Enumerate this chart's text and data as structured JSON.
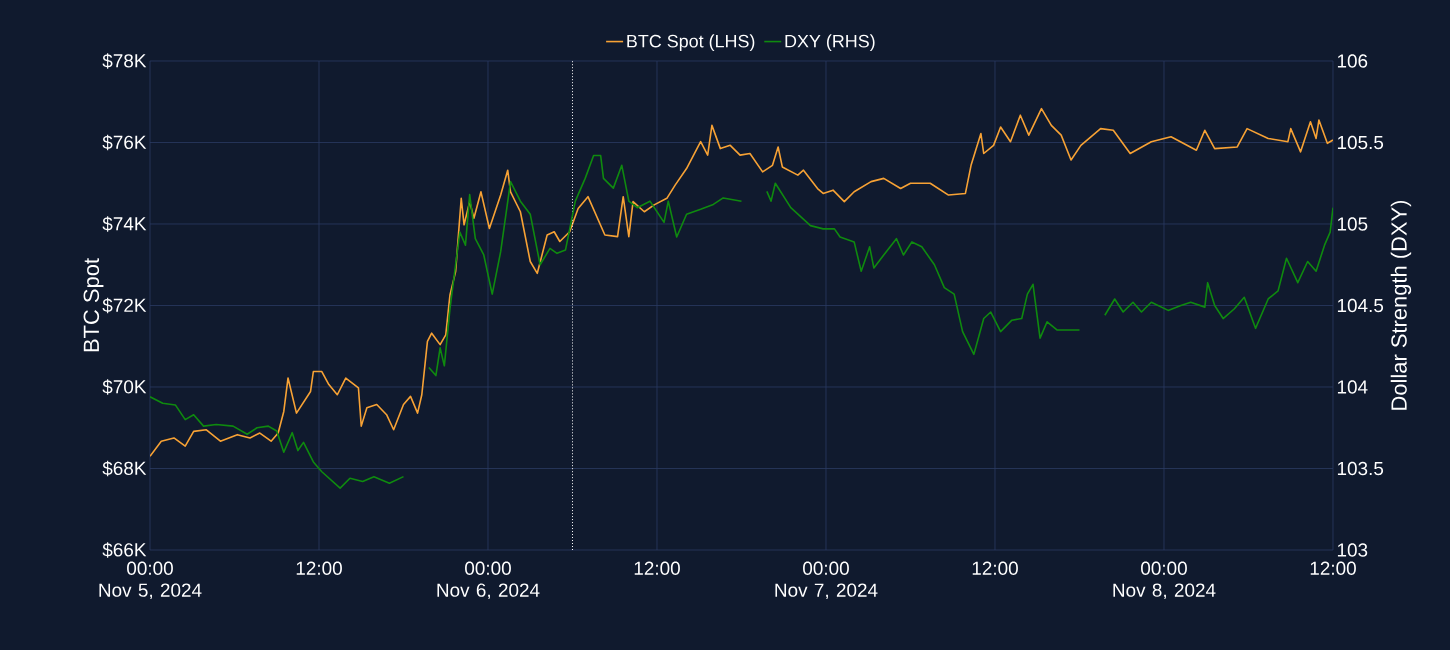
{
  "chart_data": {
    "type": "line",
    "xlim": [
      "2024-11-05T00:00",
      "2024-11-08T12:00"
    ],
    "xticks": [
      {
        "value": "2024-11-05T00:00",
        "label": "00:00\nNov 5, 2024"
      },
      {
        "value": "2024-11-05T12:00",
        "label": "12:00"
      },
      {
        "value": "2024-11-06T00:00",
        "label": "00:00\nNov 6, 2024"
      },
      {
        "value": "2024-11-06T12:00",
        "label": "12:00"
      },
      {
        "value": "2024-11-07T00:00",
        "label": "00:00\nNov 7, 2024"
      },
      {
        "value": "2024-11-07T12:00",
        "label": "12:00"
      },
      {
        "value": "2024-11-08T00:00",
        "label": "00:00\nNov 8, 2024"
      },
      {
        "value": "2024-11-08T12:00",
        "label": "12:00"
      }
    ],
    "ylim": [
      66,
      78
    ],
    "yticks": [
      {
        "value": 66,
        "label": "$66K"
      },
      {
        "value": 68,
        "label": "$68K"
      },
      {
        "value": 70,
        "label": "$70K"
      },
      {
        "value": 72,
        "label": "$72K"
      },
      {
        "value": 74,
        "label": "$74K"
      },
      {
        "value": 76,
        "label": "$76K"
      },
      {
        "value": 78,
        "label": "$78K"
      }
    ],
    "y2lim": [
      103,
      106
    ],
    "y2ticks": [
      103,
      103.5,
      104,
      104.5,
      105,
      105.5,
      106
    ],
    "ylabel": "BTC Spot",
    "y2label": "Dollar Strength (DXY)",
    "grid": true,
    "legend": "top",
    "ref_lines": [
      {
        "axis": "x",
        "value": "2024-11-06T06:00",
        "color": "#ffffff",
        "line_style": "dotted"
      }
    ],
    "series": [
      {
        "name": "BTC Spot (LHS)",
        "color": "#f7a235",
        "x": [
          "2024-11-05T00:00",
          "2024-11-05T00:48",
          "2024-11-05T01:42",
          "2024-11-05T02:30",
          "2024-11-05T03:06",
          "2024-11-05T04:00",
          "2024-11-05T05:00",
          "2024-11-05T06:12",
          "2024-11-05T07:06",
          "2024-11-05T07:48",
          "2024-11-05T08:36",
          "2024-11-05T09:06",
          "2024-11-05T09:30",
          "2024-11-05T09:48",
          "2024-11-05T10:24",
          "2024-11-05T11:24",
          "2024-11-05T11:36",
          "2024-11-05T12:12",
          "2024-11-05T12:42",
          "2024-11-05T13:18",
          "2024-11-05T13:54",
          "2024-11-05T14:48",
          "2024-11-05T15:00",
          "2024-11-05T15:24",
          "2024-11-05T16:06",
          "2024-11-05T16:48",
          "2024-11-05T17:18",
          "2024-11-05T18:00",
          "2024-11-05T18:30",
          "2024-11-05T19:00",
          "2024-11-05T19:18",
          "2024-11-05T19:42",
          "2024-11-05T20:00",
          "2024-11-05T20:36",
          "2024-11-05T21:00",
          "2024-11-05T21:18",
          "2024-11-05T21:42",
          "2024-11-05T22:06",
          "2024-11-05T22:18",
          "2024-11-05T22:42",
          "2024-11-05T23:00",
          "2024-11-05T23:30",
          "2024-11-06T00:06",
          "2024-11-06T00:54",
          "2024-11-06T01:24",
          "2024-11-06T01:36",
          "2024-11-06T02:18",
          "2024-11-06T03:00",
          "2024-11-06T03:30",
          "2024-11-06T04:12",
          "2024-11-06T04:42",
          "2024-11-06T05:06",
          "2024-11-06T05:48",
          "2024-11-06T06:24",
          "2024-11-06T07:06",
          "2024-11-06T08:18",
          "2024-11-06T09:12",
          "2024-11-06T09:36",
          "2024-11-06T10:00",
          "2024-11-06T10:18",
          "2024-11-06T11:06",
          "2024-11-06T11:48",
          "2024-11-06T12:42",
          "2024-11-06T13:18",
          "2024-11-06T14:06",
          "2024-11-06T15:06",
          "2024-11-06T15:36",
          "2024-11-06T15:54",
          "2024-11-06T16:30",
          "2024-11-06T17:12",
          "2024-11-06T17:54",
          "2024-11-06T18:36",
          "2024-11-06T19:30",
          "2024-11-06T20:12",
          "2024-11-06T20:36",
          "2024-11-06T20:54",
          "2024-11-06T22:00",
          "2024-11-06T22:24",
          "2024-11-06T23:24",
          "2024-11-06T23:48",
          "2024-11-07T00:30",
          "2024-11-07T01:18",
          "2024-11-07T02:00",
          "2024-11-07T03:12",
          "2024-11-07T04:06",
          "2024-11-07T05:18",
          "2024-11-07T06:00",
          "2024-11-07T07:24",
          "2024-11-07T08:42",
          "2024-11-07T09:54",
          "2024-11-07T10:18",
          "2024-11-07T11:00",
          "2024-11-07T11:12",
          "2024-11-07T11:54",
          "2024-11-07T12:24",
          "2024-11-07T13:06",
          "2024-11-07T13:48",
          "2024-11-07T14:24",
          "2024-11-07T15:18",
          "2024-11-07T16:00",
          "2024-11-07T16:42",
          "2024-11-07T17:24",
          "2024-11-07T18:06",
          "2024-11-07T19:30",
          "2024-11-07T20:24",
          "2024-11-07T21:36",
          "2024-11-07T23:06",
          "2024-11-08T00:30",
          "2024-11-08T02:18",
          "2024-11-08T02:54",
          "2024-11-08T03:36",
          "2024-11-08T05:12",
          "2024-11-08T05:54",
          "2024-11-08T07:24",
          "2024-11-08T08:48",
          "2024-11-08T09:00",
          "2024-11-08T09:42",
          "2024-11-08T10:24",
          "2024-11-08T10:48",
          "2024-11-08T11:00",
          "2024-11-08T11:36",
          "2024-11-08T12:00"
        ],
        "values": [
          68.3,
          68.67,
          68.75,
          68.55,
          68.91,
          68.95,
          68.67,
          68.83,
          68.75,
          68.87,
          68.67,
          68.87,
          69.4,
          70.22,
          69.36,
          69.89,
          70.38,
          70.38,
          70.06,
          69.81,
          70.22,
          69.98,
          69.04,
          69.49,
          69.57,
          69.32,
          68.95,
          69.57,
          69.77,
          69.36,
          69.81,
          71.12,
          71.32,
          71.04,
          71.28,
          72.26,
          72.83,
          74.63,
          73.98,
          74.55,
          74.14,
          74.79,
          73.89,
          74.71,
          75.32,
          74.79,
          74.3,
          73.08,
          72.79,
          73.73,
          73.81,
          73.57,
          73.81,
          74.38,
          74.67,
          73.73,
          73.69,
          74.67,
          73.69,
          74.55,
          74.3,
          74.47,
          74.63,
          74.96,
          75.36,
          76.02,
          75.69,
          76.42,
          75.85,
          75.93,
          75.69,
          75.73,
          75.28,
          75.44,
          75.89,
          75.4,
          75.2,
          75.32,
          74.87,
          74.75,
          74.83,
          74.55,
          74.79,
          75.04,
          75.12,
          74.87,
          75.0,
          75.0,
          74.71,
          74.75,
          75.44,
          76.22,
          75.73,
          75.93,
          76.38,
          76.02,
          76.67,
          76.18,
          76.83,
          76.42,
          76.18,
          75.57,
          75.93,
          76.34,
          76.3,
          75.73,
          76.02,
          76.14,
          75.81,
          76.3,
          75.85,
          75.89,
          76.34,
          76.1,
          76.02,
          76.34,
          75.77,
          76.51,
          76.1,
          76.55,
          75.98,
          76.06
        ]
      },
      {
        "name": "DXY (RHS)",
        "color": "#0f8a0f",
        "axis": "y2",
        "x": [
          "2024-11-05T00:00",
          "2024-11-05T00:54",
          "2024-11-05T01:48",
          "2024-11-05T02:30",
          "2024-11-05T03:06",
          "2024-11-05T03:48",
          "2024-11-05T04:42",
          "2024-11-05T05:54",
          "2024-11-05T06:54",
          "2024-11-05T07:36",
          "2024-11-05T08:24",
          "2024-11-05T09:00",
          "2024-11-05T09:30",
          "2024-11-05T10:06",
          "2024-11-05T10:30",
          "2024-11-05T10:54",
          "2024-11-05T11:36",
          "2024-11-05T12:12",
          "2024-11-05T13:30",
          "2024-11-05T14:12",
          "2024-11-05T15:06",
          "2024-11-05T15:54",
          "2024-11-05T17:00",
          "2024-11-05T18:00",
          "2024-11-05T19:00",
          "2024-11-05T19:48",
          "2024-11-05T20:18",
          "2024-11-05T20:36",
          "2024-11-05T20:54",
          "2024-11-05T21:18",
          "2024-11-05T21:42",
          "2024-11-05T22:00",
          "2024-11-05T22:24",
          "2024-11-05T22:42",
          "2024-11-05T23:06",
          "2024-11-05T23:42",
          "2024-11-06T00:18",
          "2024-11-06T00:54",
          "2024-11-06T01:36",
          "2024-11-06T02:18",
          "2024-11-06T03:00",
          "2024-11-06T03:42",
          "2024-11-06T04:24",
          "2024-11-06T04:54",
          "2024-11-06T05:30",
          "2024-11-06T06:12",
          "2024-11-06T06:54",
          "2024-11-06T07:30",
          "2024-11-06T08:00",
          "2024-11-06T08:12",
          "2024-11-06T08:54",
          "2024-11-06T09:30",
          "2024-11-06T10:00",
          "2024-11-06T10:36",
          "2024-11-06T11:30",
          "2024-11-06T12:30",
          "2024-11-06T12:48",
          "2024-11-06T13:24",
          "2024-11-06T14:06",
          "2024-11-06T15:06",
          "2024-11-06T16:00",
          "2024-11-06T16:42",
          "2024-11-06T18:00",
          "2024-11-06T19:00",
          "2024-11-06T19:48",
          "2024-11-06T20:06",
          "2024-11-06T20:24",
          "2024-11-06T21:30",
          "2024-11-06T22:54",
          "2024-11-06T23:48",
          "2024-11-07T00:36",
          "2024-11-07T01:00",
          "2024-11-07T02:00",
          "2024-11-07T02:30",
          "2024-11-07T03:06",
          "2024-11-07T03:24",
          "2024-11-07T04:06",
          "2024-11-07T05:00",
          "2024-11-07T05:30",
          "2024-11-07T06:06",
          "2024-11-07T06:48",
          "2024-11-07T07:42",
          "2024-11-07T08:24",
          "2024-11-07T09:06",
          "2024-11-07T09:42",
          "2024-11-07T10:30",
          "2024-11-07T11:12",
          "2024-11-07T11:42",
          "2024-11-07T12:24",
          "2024-11-07T13:12",
          "2024-11-07T13:54",
          "2024-11-07T14:18",
          "2024-11-07T14:42",
          "2024-11-07T15:12",
          "2024-11-07T15:42",
          "2024-11-07T16:24",
          "2024-11-07T18:00",
          "2024-11-07T19:00",
          "2024-11-07T19:48",
          "2024-11-07T20:30",
          "2024-11-07T21:06",
          "2024-11-07T21:48",
          "2024-11-07T22:24",
          "2024-11-07T23:06",
          "2024-11-08T00:18",
          "2024-11-08T01:12",
          "2024-11-08T01:54",
          "2024-11-08T02:54",
          "2024-11-08T03:06",
          "2024-11-08T03:36",
          "2024-11-08T04:12",
          "2024-11-08T05:00",
          "2024-11-08T05:42",
          "2024-11-08T06:30",
          "2024-11-08T07:24",
          "2024-11-08T08:06",
          "2024-11-08T08:42",
          "2024-11-08T09:30",
          "2024-11-08T10:12",
          "2024-11-08T10:48",
          "2024-11-08T11:24",
          "2024-11-08T11:48",
          "2024-11-08T12:00"
        ],
        "values": [
          103.94,
          103.9,
          103.89,
          103.8,
          103.83,
          103.76,
          103.77,
          103.76,
          103.71,
          103.75,
          103.76,
          103.73,
          103.6,
          103.72,
          103.61,
          103.66,
          103.54,
          103.48,
          103.38,
          103.44,
          103.42,
          103.45,
          103.41,
          103.45,
          null,
          104.12,
          104.07,
          104.24,
          104.13,
          104.48,
          104.75,
          104.95,
          104.87,
          105.18,
          104.91,
          104.81,
          104.57,
          104.83,
          105.26,
          105.14,
          105.06,
          104.75,
          104.85,
          104.82,
          104.84,
          105.14,
          105.28,
          105.42,
          105.42,
          105.28,
          105.22,
          105.36,
          105.14,
          105.1,
          105.14,
          105.01,
          105.14,
          104.92,
          105.06,
          105.09,
          105.12,
          105.16,
          105.14,
          null,
          105.2,
          105.14,
          105.25,
          105.1,
          104.99,
          104.97,
          104.97,
          104.92,
          104.89,
          104.71,
          104.86,
          104.73,
          104.81,
          104.91,
          104.81,
          104.89,
          104.86,
          104.75,
          104.61,
          104.57,
          104.34,
          104.2,
          104.42,
          104.46,
          104.34,
          104.41,
          104.42,
          104.57,
          104.63,
          104.3,
          104.4,
          104.35,
          104.35,
          null,
          104.44,
          104.54,
          104.46,
          104.52,
          104.46,
          104.52,
          104.47,
          104.5,
          104.52,
          104.49,
          104.64,
          104.5,
          104.42,
          104.48,
          104.55,
          104.36,
          104.54,
          104.59,
          104.79,
          104.64,
          104.77,
          104.71,
          104.87,
          104.95,
          105.1
        ]
      }
    ]
  }
}
